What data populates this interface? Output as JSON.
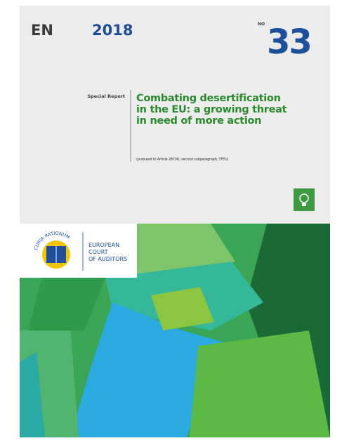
{
  "header": {
    "language": "EN",
    "year": "2018",
    "number_label": "NO",
    "number": "33"
  },
  "report": {
    "type": "Special Report",
    "title_lines": [
      "Combating desertification",
      "in the EU: a growing threat",
      "in need of more action"
    ],
    "subtitle": "(pursuant to Article 287(4), second subparagraph, TFEU)"
  },
  "logo": {
    "motto": "CURIA RATIONUM",
    "name_lines": [
      "EUROPEAN",
      "COURT",
      "OF AUDITORS"
    ]
  }
}
